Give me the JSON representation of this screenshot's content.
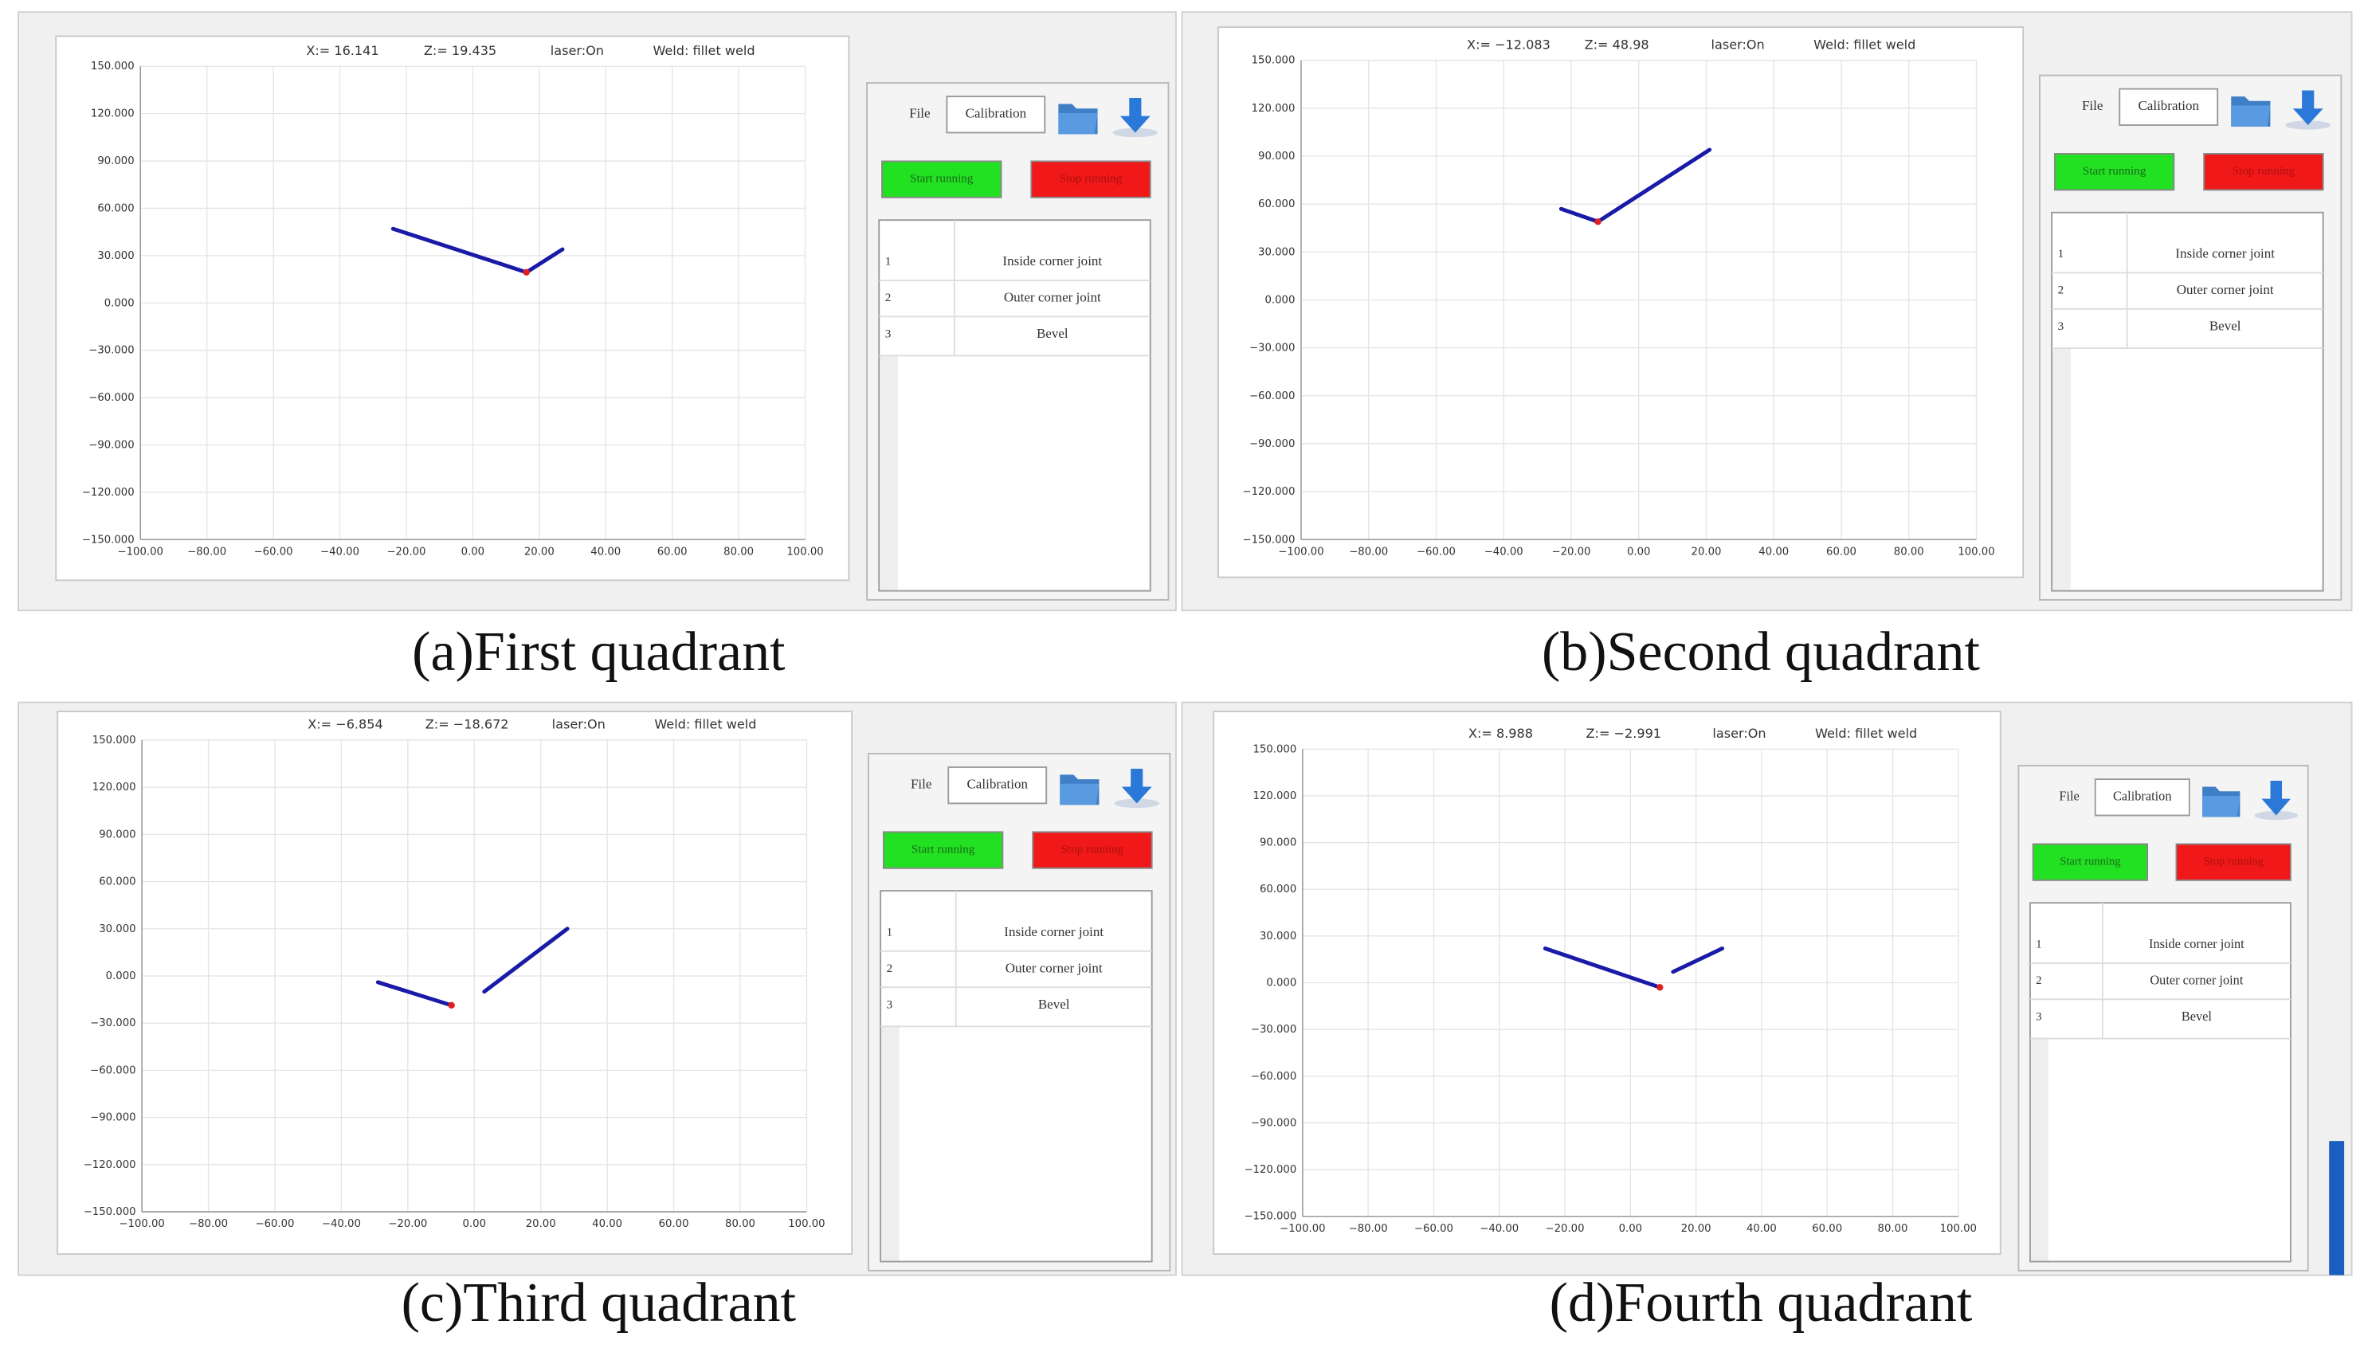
{
  "chart_data": [
    {
      "type": "line",
      "xlim": [
        -100,
        100
      ],
      "ylim": [
        -150,
        150
      ],
      "grid": true,
      "xticks": [
        {
          "value": -100,
          "label": "−100.00"
        },
        {
          "value": -80,
          "label": "−80.00"
        },
        {
          "value": -60,
          "label": "−60.00"
        },
        {
          "value": -40,
          "label": "−40.00"
        },
        {
          "value": -20,
          "label": "−20.00"
        },
        {
          "value": 0,
          "label": "0.00"
        },
        {
          "value": 20,
          "label": "20.00"
        },
        {
          "value": 40,
          "label": "40.00"
        },
        {
          "value": 60,
          "label": "60.00"
        },
        {
          "value": 80,
          "label": "80.00"
        },
        {
          "value": 100,
          "label": "100.00"
        }
      ],
      "yticks": [
        {
          "value": 150,
          "label": "150.000"
        },
        {
          "value": 120,
          "label": "120.000"
        },
        {
          "value": 90,
          "label": "90.000"
        },
        {
          "value": 60,
          "label": "60.000"
        },
        {
          "value": 30,
          "label": "30.000"
        },
        {
          "value": 0,
          "label": "0.000"
        },
        {
          "value": -30,
          "label": "−30.000"
        },
        {
          "value": -60,
          "label": "−60.000"
        },
        {
          "value": -90,
          "label": "−90.000"
        },
        {
          "value": -120,
          "label": "−120.000"
        },
        {
          "value": -150,
          "label": "−150.000"
        }
      ],
      "series": [
        {
          "color": "#1a1aa8",
          "x": [
            -24,
            16.141,
            27
          ],
          "values": [
            47,
            19.435,
            34
          ]
        },
        {
          "color": "#e02020",
          "marker": true,
          "x": [
            16.141
          ],
          "values": [
            19.435
          ]
        }
      ]
    },
    {
      "type": "line",
      "xlim": [
        -100,
        100
      ],
      "ylim": [
        -150,
        150
      ],
      "grid": true,
      "xticks": [
        {
          "value": -100,
          "label": "−100.00"
        },
        {
          "value": -80,
          "label": "−80.00"
        },
        {
          "value": -60,
          "label": "−60.00"
        },
        {
          "value": -40,
          "label": "−40.00"
        },
        {
          "value": -20,
          "label": "−20.00"
        },
        {
          "value": 0,
          "label": "0.00"
        },
        {
          "value": 20,
          "label": "20.00"
        },
        {
          "value": 40,
          "label": "40.00"
        },
        {
          "value": 60,
          "label": "60.00"
        },
        {
          "value": 80,
          "label": "80.00"
        },
        {
          "value": 100,
          "label": "100.00"
        }
      ],
      "yticks": [
        {
          "value": 150,
          "label": "150.000"
        },
        {
          "value": 120,
          "label": "120.000"
        },
        {
          "value": 90,
          "label": "90.000"
        },
        {
          "value": 60,
          "label": "60.000"
        },
        {
          "value": 30,
          "label": "30.000"
        },
        {
          "value": 0,
          "label": "0.000"
        },
        {
          "value": -30,
          "label": "−30.000"
        },
        {
          "value": -60,
          "label": "−60.000"
        },
        {
          "value": -90,
          "label": "−90.000"
        },
        {
          "value": -120,
          "label": "−120.000"
        },
        {
          "value": -150,
          "label": "−150.000"
        }
      ],
      "series": [
        {
          "color": "#1a1aa8",
          "x": [
            -23,
            -12.083,
            21
          ],
          "values": [
            57,
            48.98,
            94
          ]
        },
        {
          "color": "#e02020",
          "marker": true,
          "x": [
            -12.083
          ],
          "values": [
            48.98
          ]
        }
      ]
    },
    {
      "type": "line",
      "xlim": [
        -100,
        100
      ],
      "ylim": [
        -150,
        150
      ],
      "grid": true,
      "xticks": [
        {
          "value": -100,
          "label": "−100.00"
        },
        {
          "value": -80,
          "label": "−80.00"
        },
        {
          "value": -60,
          "label": "−60.00"
        },
        {
          "value": -40,
          "label": "−40.00"
        },
        {
          "value": -20,
          "label": "−20.00"
        },
        {
          "value": 0,
          "label": "0.00"
        },
        {
          "value": 20,
          "label": "20.00"
        },
        {
          "value": 40,
          "label": "40.00"
        },
        {
          "value": 60,
          "label": "60.00"
        },
        {
          "value": 80,
          "label": "80.00"
        },
        {
          "value": 100,
          "label": "100.00"
        }
      ],
      "yticks": [
        {
          "value": 150,
          "label": "150.000"
        },
        {
          "value": 120,
          "label": "120.000"
        },
        {
          "value": 90,
          "label": "90.000"
        },
        {
          "value": 60,
          "label": "60.000"
        },
        {
          "value": 30,
          "label": "30.000"
        },
        {
          "value": 0,
          "label": "0.000"
        },
        {
          "value": -30,
          "label": "−30.000"
        },
        {
          "value": -60,
          "label": "−60.000"
        },
        {
          "value": -90,
          "label": "−90.000"
        },
        {
          "value": -120,
          "label": "−120.000"
        },
        {
          "value": -150,
          "label": "−150.000"
        }
      ],
      "series": [
        {
          "color": "#1a1aa8",
          "x": [
            -29,
            -6.854
          ],
          "values": [
            -4,
            -18.672
          ]
        },
        {
          "color": "#1a1aa8",
          "x": [
            3,
            28
          ],
          "values": [
            -10,
            30
          ]
        },
        {
          "color": "#e02020",
          "marker": true,
          "x": [
            -6.854
          ],
          "values": [
            -18.672
          ]
        }
      ]
    },
    {
      "type": "line",
      "xlim": [
        -100,
        100
      ],
      "ylim": [
        -150,
        150
      ],
      "grid": true,
      "xticks": [
        {
          "value": -100,
          "label": "−100.00"
        },
        {
          "value": -80,
          "label": "−80.00"
        },
        {
          "value": -60,
          "label": "−60.00"
        },
        {
          "value": -40,
          "label": "−40.00"
        },
        {
          "value": -20,
          "label": "−20.00"
        },
        {
          "value": 0,
          "label": "0.00"
        },
        {
          "value": 20,
          "label": "20.00"
        },
        {
          "value": 40,
          "label": "40.00"
        },
        {
          "value": 60,
          "label": "60.00"
        },
        {
          "value": 80,
          "label": "80.00"
        },
        {
          "value": 100,
          "label": "100.00"
        }
      ],
      "yticks": [
        {
          "value": 150,
          "label": "150.000"
        },
        {
          "value": 120,
          "label": "120.000"
        },
        {
          "value": 90,
          "label": "90.000"
        },
        {
          "value": 60,
          "label": "60.000"
        },
        {
          "value": 30,
          "label": "30.000"
        },
        {
          "value": 0,
          "label": "0.000"
        },
        {
          "value": -30,
          "label": "−30.000"
        },
        {
          "value": -60,
          "label": "−60.000"
        },
        {
          "value": -90,
          "label": "−90.000"
        },
        {
          "value": -120,
          "label": "−120.000"
        },
        {
          "value": -150,
          "label": "−150.000"
        }
      ],
      "series": [
        {
          "color": "#1a1aa8",
          "x": [
            -26,
            8.988
          ],
          "values": [
            22,
            -2.991
          ]
        },
        {
          "color": "#1a1aa8",
          "x": [
            13,
            28
          ],
          "values": [
            7,
            22
          ]
        },
        {
          "color": "#e02020",
          "marker": true,
          "x": [
            8.988
          ],
          "values": [
            -2.991
          ]
        }
      ]
    }
  ],
  "panels": [
    {
      "caption": "(a)First quadrant",
      "status": [
        "X:= 16.141",
        "Z:= 19.435",
        "laser:On",
        "Weld: fillet weld"
      ],
      "menu": "File",
      "calibration": "Calibration",
      "start": "Start running",
      "stop": "Stop running",
      "rows": [
        [
          "1",
          "Inside corner joint"
        ],
        [
          "2",
          "Outer corner joint"
        ],
        [
          "3",
          "Bevel"
        ]
      ]
    },
    {
      "caption": "(b)Second quadrant",
      "status": [
        "X:= −12.083",
        "Z:= 48.98",
        "laser:On",
        "Weld: fillet weld"
      ],
      "menu": "File",
      "calibration": "Calibration",
      "start": "Start running",
      "stop": "Stop running",
      "rows": [
        [
          "1",
          "Inside corner joint"
        ],
        [
          "2",
          "Outer corner joint"
        ],
        [
          "3",
          "Bevel"
        ]
      ]
    },
    {
      "caption": "(c)Third quadrant",
      "status": [
        "X:= −6.854",
        "Z:= −18.672",
        "laser:On",
        "Weld: fillet weld"
      ],
      "menu": "File",
      "calibration": "Calibration",
      "start": "Start running",
      "stop": "Stop running",
      "rows": [
        [
          "1",
          "Inside corner joint"
        ],
        [
          "2",
          "Outer corner joint"
        ],
        [
          "3",
          "Bevel"
        ]
      ]
    },
    {
      "caption": "(d)Fourth quadrant",
      "status": [
        "X:= 8.988",
        "Z:= −2.991",
        "laser:On",
        "Weld: fillet weld"
      ],
      "menu": "File",
      "calibration": "Calibration",
      "start": "Start running",
      "stop": "Stop running",
      "rows": [
        [
          "1",
          "Inside corner joint"
        ],
        [
          "2",
          "Outer corner joint"
        ],
        [
          "3",
          "Bevel"
        ]
      ]
    }
  ]
}
